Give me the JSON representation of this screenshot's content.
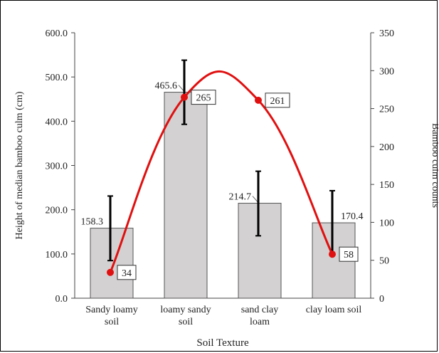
{
  "chart_data": {
    "type": "bar",
    "categories": [
      [
        "Sandy loamy",
        "soil"
      ],
      [
        "loamy sandy",
        "soil"
      ],
      [
        "sand clay",
        "loam"
      ],
      [
        "clay loam soil"
      ]
    ],
    "xlabel": "Soil Texture",
    "ylabel_left": "Height of median bamboo culm (cm)",
    "ylabel_right": "Bamboo culm counts",
    "ylim_left": [
      0,
      600
    ],
    "ylim_right": [
      0,
      350
    ],
    "yticks_left": [
      "0.0",
      "100.0",
      "200.0",
      "300.0",
      "400.0",
      "500.0",
      "600.0"
    ],
    "yticks_right": [
      "0",
      "50",
      "100",
      "150",
      "200",
      "250",
      "300",
      "350"
    ],
    "grid": false,
    "series": [
      {
        "type": "bar",
        "axis": "left",
        "values": [
          158.3,
          465.6,
          214.7,
          170.4
        ],
        "labels": [
          "158.3",
          "465.6",
          "214.7",
          "170.4"
        ],
        "error_low": [
          85,
          393,
          141,
          101
        ],
        "error_high": [
          231,
          538,
          287,
          243
        ],
        "color": "#d3d1d1"
      },
      {
        "type": "line",
        "axis": "right",
        "values": [
          34,
          265,
          261,
          58
        ],
        "labels": [
          "34",
          "265",
          "261",
          "58"
        ],
        "color": "#e01010"
      }
    ]
  }
}
